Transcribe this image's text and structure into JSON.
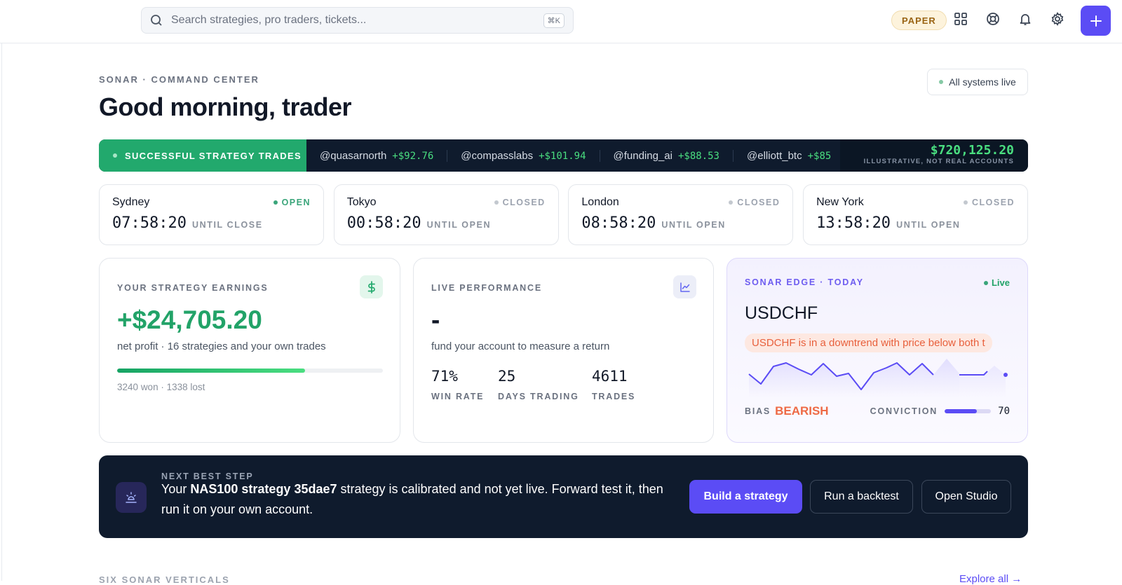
{
  "header": {
    "search_placeholder": "Search strategies, pro traders, tickets...",
    "shortcut": "⌘K",
    "mode": "PAPER"
  },
  "page": {
    "eyebrow": "SONAR · COMMAND CENTER",
    "title": "Good morning, trader",
    "status": "All systems live"
  },
  "ticker": {
    "label": "SUCCESSFUL STRATEGY TRADES",
    "items": [
      {
        "handle": "@quasarnorth",
        "amount": "+$92.76"
      },
      {
        "handle": "@compasslabs",
        "amount": "+$101.94"
      },
      {
        "handle": "@funding_ai",
        "amount": "+$88.53"
      },
      {
        "handle": "@elliott_btc",
        "amount": "+$85"
      }
    ],
    "total": "$720,125.20",
    "note": "ILLUSTRATIVE, NOT REAL ACCOUNTS"
  },
  "sessions": [
    {
      "city": "Sydney",
      "status": "OPEN",
      "color": "#3aa57a",
      "time": "07:58:20",
      "caption": "UNTIL CLOSE"
    },
    {
      "city": "Tokyo",
      "status": "CLOSED",
      "color": "#c3c8cf",
      "time": "00:58:20",
      "caption": "UNTIL OPEN"
    },
    {
      "city": "London",
      "status": "CLOSED",
      "color": "#c3c8cf",
      "time": "08:58:20",
      "caption": "UNTIL OPEN"
    },
    {
      "city": "New York",
      "status": "CLOSED",
      "color": "#c3c8cf",
      "time": "13:58:20",
      "caption": "UNTIL OPEN"
    }
  ],
  "earnings": {
    "label": "YOUR STRATEGY EARNINGS",
    "value": "+$24,705.20",
    "subtitle": "net profit · 16 strategies and your own trades",
    "won": 3240,
    "won_text": "won",
    "separator": "·",
    "lost": 1338,
    "lost_text": "lost"
  },
  "performance": {
    "label": "LIVE PERFORMANCE",
    "value": "-",
    "subtitle": "fund your account to measure a return",
    "stats": [
      {
        "value": "71%",
        "label": "WIN RATE"
      },
      {
        "value": 25,
        "label": "DAYS TRADING"
      },
      {
        "value": 4611,
        "label": "TRADES"
      }
    ]
  },
  "edge": {
    "label": "SONAR EDGE · TODAY",
    "status": "Live",
    "symbol": "USDCHF",
    "summary": "USDCHF is in a downtrend with price below both t",
    "bias_label": "BIAS",
    "bias": "BEARISH",
    "conviction_label": "CONVICTION",
    "conviction": 70
  },
  "next_step": {
    "label": "NEXT BEST STEP",
    "text_before": "Your ",
    "text_bold": "NAS100 strategy 35dae7",
    "text_after": " strategy is calibrated and not yet live. Forward test it, then run it on your own account.",
    "buttons": [
      "Build a strategy",
      "Run a backtest",
      "Open Studio"
    ]
  },
  "footer": {
    "section": "SIX SONAR VERTICALS",
    "link": "Explore all →"
  }
}
